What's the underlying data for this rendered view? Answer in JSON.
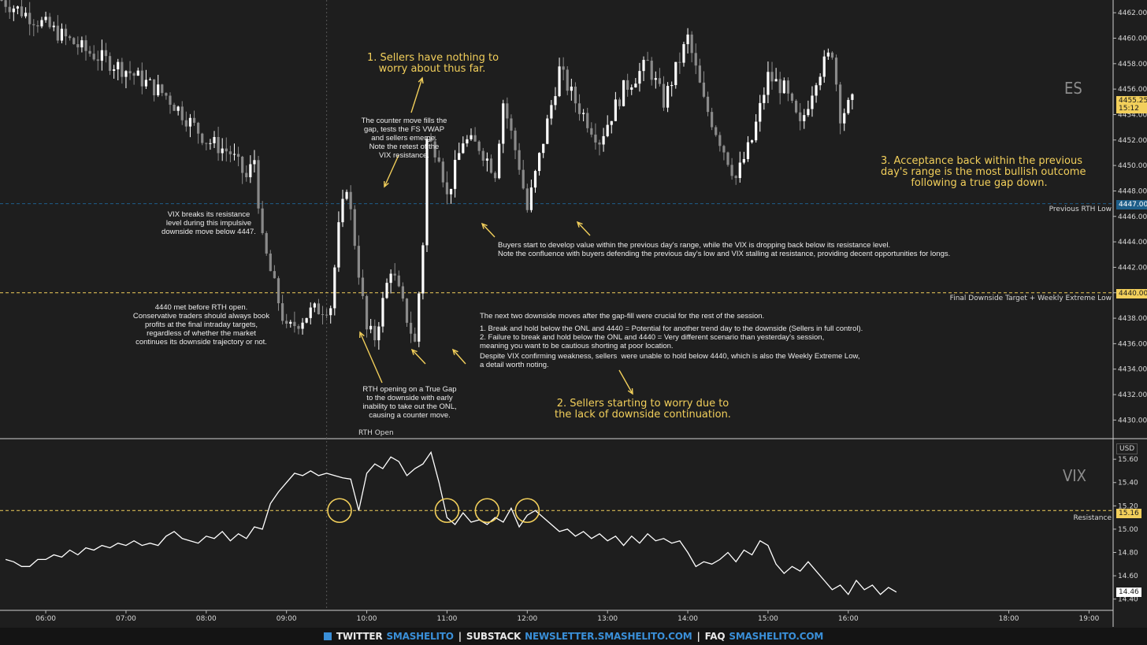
{
  "chart_data": [
    {
      "type": "candlestick",
      "symbol": "ES",
      "yaxis": {
        "ticks": [
          "4462.00",
          "4460.00",
          "4458.00",
          "4456.00",
          "4454.00",
          "4452.00",
          "4450.00",
          "4448.00",
          "4446.00",
          "4444.00",
          "4442.00",
          "4440.00",
          "4438.00",
          "4436.00",
          "4434.00",
          "4432.00",
          "4430.00"
        ],
        "range": [
          4428.6,
          4463.0
        ]
      },
      "last_price": "4455.25",
      "countdown": "15:12",
      "levels": [
        {
          "label": "Previous RTH Low",
          "value": 4447.0,
          "tag": "4447.00",
          "color": "#1e5f8a"
        },
        {
          "label": "Final Downside Target + Weekly Extreme Low",
          "value": 4440.0,
          "tag": "4440.00",
          "color": "#f2cf5b"
        }
      ]
    },
    {
      "type": "line",
      "symbol": "VIX",
      "currency": "USD",
      "yaxis": {
        "ticks": [
          "15.60",
          "15.40",
          "15.20",
          "15.00",
          "14.80",
          "14.60",
          "14.40"
        ],
        "range": [
          14.31,
          15.77
        ]
      },
      "last_value": "14.46",
      "level": {
        "label": "Resistance",
        "value": 15.16,
        "tag": "15.16"
      },
      "points": [
        [
          5.5,
          14.74
        ],
        [
          5.6,
          14.72
        ],
        [
          5.7,
          14.68
        ],
        [
          5.8,
          14.68
        ],
        [
          5.9,
          14.74
        ],
        [
          6.0,
          14.74
        ],
        [
          6.1,
          14.78
        ],
        [
          6.2,
          14.76
        ],
        [
          6.3,
          14.82
        ],
        [
          6.4,
          14.78
        ],
        [
          6.5,
          14.84
        ],
        [
          6.6,
          14.82
        ],
        [
          6.7,
          14.86
        ],
        [
          6.8,
          14.84
        ],
        [
          6.9,
          14.88
        ],
        [
          7.0,
          14.86
        ],
        [
          7.1,
          14.9
        ],
        [
          7.2,
          14.86
        ],
        [
          7.3,
          14.88
        ],
        [
          7.4,
          14.86
        ],
        [
          7.5,
          14.94
        ],
        [
          7.6,
          14.98
        ],
        [
          7.7,
          14.92
        ],
        [
          7.8,
          14.9
        ],
        [
          7.9,
          14.88
        ],
        [
          8.0,
          14.94
        ],
        [
          8.1,
          14.92
        ],
        [
          8.2,
          14.98
        ],
        [
          8.3,
          14.9
        ],
        [
          8.4,
          14.96
        ],
        [
          8.5,
          14.92
        ],
        [
          8.6,
          15.02
        ],
        [
          8.7,
          15.0
        ],
        [
          8.8,
          15.22
        ],
        [
          8.9,
          15.32
        ],
        [
          9.0,
          15.4
        ],
        [
          9.1,
          15.48
        ],
        [
          9.2,
          15.46
        ],
        [
          9.3,
          15.5
        ],
        [
          9.4,
          15.46
        ],
        [
          9.5,
          15.48
        ],
        [
          9.6,
          15.46
        ],
        [
          9.7,
          15.44
        ],
        [
          9.8,
          15.43
        ],
        [
          9.9,
          15.16
        ],
        [
          10.0,
          15.48
        ],
        [
          10.1,
          15.56
        ],
        [
          10.2,
          15.52
        ],
        [
          10.3,
          15.62
        ],
        [
          10.4,
          15.58
        ],
        [
          10.5,
          15.46
        ],
        [
          10.6,
          15.52
        ],
        [
          10.7,
          15.56
        ],
        [
          10.8,
          15.66
        ],
        [
          10.9,
          15.4
        ],
        [
          11.0,
          15.1
        ],
        [
          11.1,
          15.04
        ],
        [
          11.2,
          15.14
        ],
        [
          11.3,
          15.06
        ],
        [
          11.4,
          15.08
        ],
        [
          11.5,
          15.04
        ],
        [
          11.6,
          15.1
        ],
        [
          11.7,
          15.06
        ],
        [
          11.8,
          15.18
        ],
        [
          11.9,
          15.02
        ],
        [
          12.0,
          15.12
        ],
        [
          12.1,
          15.16
        ],
        [
          12.2,
          15.1
        ],
        [
          12.3,
          15.04
        ],
        [
          12.4,
          14.98
        ],
        [
          12.5,
          15.0
        ],
        [
          12.6,
          14.94
        ],
        [
          12.7,
          14.98
        ],
        [
          12.8,
          14.92
        ],
        [
          12.9,
          14.96
        ],
        [
          13.0,
          14.9
        ],
        [
          13.1,
          14.94
        ],
        [
          13.2,
          14.86
        ],
        [
          13.3,
          14.94
        ],
        [
          13.4,
          14.88
        ],
        [
          13.5,
          14.96
        ],
        [
          13.6,
          14.9
        ],
        [
          13.7,
          14.92
        ],
        [
          13.8,
          14.88
        ],
        [
          13.9,
          14.9
        ],
        [
          14.0,
          14.8
        ],
        [
          14.1,
          14.68
        ],
        [
          14.2,
          14.72
        ],
        [
          14.3,
          14.7
        ],
        [
          14.4,
          14.74
        ],
        [
          14.5,
          14.8
        ],
        [
          14.6,
          14.72
        ],
        [
          14.7,
          14.82
        ],
        [
          14.8,
          14.78
        ],
        [
          14.9,
          14.9
        ],
        [
          15.0,
          14.86
        ],
        [
          15.1,
          14.7
        ],
        [
          15.2,
          14.62
        ],
        [
          15.3,
          14.68
        ],
        [
          15.4,
          14.64
        ],
        [
          15.5,
          14.72
        ],
        [
          15.6,
          14.64
        ],
        [
          15.7,
          14.56
        ],
        [
          15.8,
          14.48
        ],
        [
          15.9,
          14.52
        ],
        [
          16.0,
          14.44
        ],
        [
          16.1,
          14.56
        ],
        [
          16.2,
          14.48
        ],
        [
          16.3,
          14.52
        ],
        [
          16.4,
          14.44
        ],
        [
          16.5,
          14.5
        ],
        [
          16.6,
          14.46
        ]
      ]
    }
  ],
  "xaxis": {
    "ticks": [
      {
        "t": 6,
        "label": "06:00"
      },
      {
        "t": 7,
        "label": "07:00"
      },
      {
        "t": 8,
        "label": "08:00"
      },
      {
        "t": 9,
        "label": "09:00"
      },
      {
        "t": 10,
        "label": "10:00"
      },
      {
        "t": 11,
        "label": "11:00"
      },
      {
        "t": 12,
        "label": "12:00"
      },
      {
        "t": 13,
        "label": "13:00"
      },
      {
        "t": 14,
        "label": "14:00"
      },
      {
        "t": 15,
        "label": "15:00"
      },
      {
        "t": 16,
        "label": "16:00"
      },
      {
        "t": 18,
        "label": "18:00"
      },
      {
        "t": 19,
        "label": "19:00"
      }
    ],
    "range": [
      5.43,
      19.3
    ]
  },
  "rth_open": {
    "label": "RTH Open",
    "t": 9.5
  },
  "annotations": {
    "a1": "1. Sellers have nothing to\nworry about thus far.",
    "a2": "2. Sellers starting to worry due to\nthe lack of downside continuation.",
    "a3": "3. Acceptance back within the previous\nday's range is the most bullish outcome\nfollowing a true gap down.",
    "vix_break": "VIX breaks its resistance\nlevel during this impulsive\ndownside move below 4447.",
    "met_4440": "4440 met before RTH open.\nConservative traders should always book\nprofits at the final intraday targets,\nregardless of whether the market\ncontinues its downside trajectory or not.",
    "counter_move": "The counter move fills the\ngap, tests the FS VWAP\nand sellers emerge.\nNote the retest of the\nVIX resistance.",
    "rth_gap": "RTH opening on a True Gap\nto the downside with early\ninability to take out the ONL,\ncausing a counter move.",
    "buyers": "Buyers start to develop value within the previous day's range, while the VIX is dropping back below its resistance level.\nNote the confluence with buyers defending the previous day's low and VIX stalling at resistance, providing decent opportunities for longs.",
    "downside_moves_title": "The next two downside moves after the gap-fill were crucial for the rest of the session.",
    "downside_moves_items": "1. Break and hold below the ONL and 4440 = Potential for another trend day to the downside (Sellers in full control).\n2. Failure to break and hold below the ONL and 4440 = Very different scenario than yesterday's session,\nmeaning you want to be cautious shorting at poor location.",
    "vix_weakness": "Despite VIX confirming weakness, sellers  were unable to hold below 4440, which is also the Weekly Extreme Low,\na detail worth noting."
  },
  "footer": {
    "twitter_label": "TWITTER",
    "twitter_handle": "SMASHELITO",
    "substack_label": "SUBSTACK",
    "substack_url": "NEWSLETTER.SMASHELITO.COM",
    "faq_label": "FAQ",
    "faq_url": "SMASHELITO.COM"
  },
  "colors": {
    "background": "#1e1e1e",
    "candle_up": "#ffffff",
    "candle_down": "#8a8a8a",
    "annotation_gold": "#f2cf5b",
    "link_blue": "#3a8fd8"
  }
}
